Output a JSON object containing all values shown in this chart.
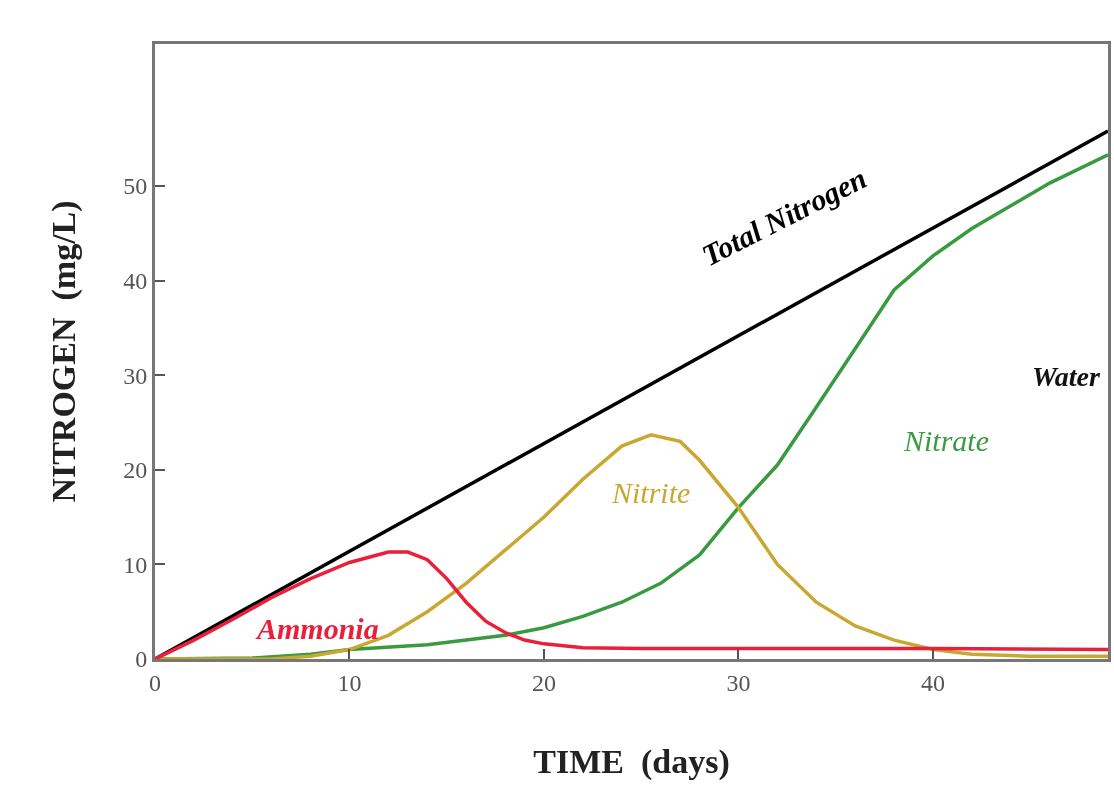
{
  "chart_data": {
    "type": "line",
    "xlabel": "TIME  (days)",
    "ylabel": "NITROGEN  (mg/L)",
    "xlim": [
      0,
      49
    ],
    "xticks": [
      0,
      10,
      20,
      30,
      40
    ],
    "ylim": [
      0,
      65
    ],
    "yticks": [
      0,
      10,
      20,
      30,
      40,
      50
    ],
    "grid": false,
    "legend": false,
    "marker": "none",
    "line_style": "solid",
    "annotations": [
      "Water"
    ],
    "series": [
      {
        "name": "Total Nitrogen",
        "color": "#000000",
        "x": [
          0,
          49
        ],
        "values": [
          0,
          55.8
        ]
      },
      {
        "name": "Nitrate",
        "color": "#3a9a40",
        "x": [
          0,
          5,
          8,
          10,
          14,
          18,
          20,
          22,
          24,
          26,
          28,
          30,
          32,
          34,
          36,
          38,
          40,
          42,
          44,
          46,
          49
        ],
        "values": [
          0,
          0.1,
          0.5,
          1,
          1.5,
          2.5,
          3.3,
          4.5,
          6,
          8,
          11,
          16,
          20.5,
          26.6,
          32.8,
          39,
          42.6,
          45.5,
          47.9,
          50.3,
          53.3
        ]
      },
      {
        "name": "Nitrite",
        "color": "#c8a830",
        "x": [
          0,
          6,
          8,
          10,
          12,
          14,
          16,
          18,
          20,
          22,
          24,
          25.5,
          27,
          28,
          30,
          32,
          34,
          36,
          38,
          40,
          42,
          45,
          49
        ],
        "values": [
          0,
          0,
          0.3,
          1,
          2.5,
          5,
          8,
          11.5,
          15,
          19,
          22.5,
          23.7,
          23,
          21,
          16,
          10,
          6,
          3.5,
          2,
          1,
          0.5,
          0.3,
          0.3
        ]
      },
      {
        "name": "Ammonia",
        "color": "#e8203a",
        "x": [
          0,
          2,
          4,
          6,
          8,
          10,
          12,
          13,
          14,
          15,
          16,
          17,
          18,
          19,
          20,
          22,
          25,
          40,
          49
        ],
        "values": [
          0,
          2,
          4.2,
          6.5,
          8.5,
          10.2,
          11.3,
          11.3,
          10.5,
          8.5,
          6,
          4,
          2.8,
          2,
          1.6,
          1.2,
          1.1,
          1.1,
          1
        ]
      }
    ]
  }
}
